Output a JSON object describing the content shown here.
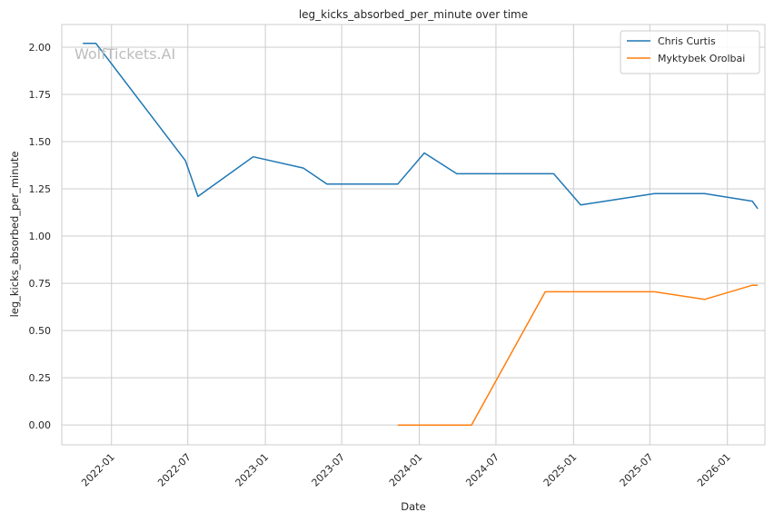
{
  "chart_data": {
    "type": "line",
    "title": "leg_kicks_absorbed_per_minute over time",
    "xlabel": "Date",
    "ylabel": "leg_kicks_absorbed_per_minute",
    "watermark": "WolfTickets.AI",
    "x_ticks": [
      "2022-01",
      "2022-07",
      "2023-01",
      "2023-07",
      "2024-01",
      "2024-07",
      "2025-01",
      "2025-07",
      "2026-01"
    ],
    "y_ticks": [
      "0.00",
      "0.25",
      "0.50",
      "0.75",
      "1.00",
      "1.25",
      "1.50",
      "1.75",
      "2.00"
    ],
    "xlim": [
      "2021-09-05",
      "2026-03-31"
    ],
    "ylim": [
      -0.105,
      2.12
    ],
    "grid": true,
    "legend_position": "top-right",
    "series": [
      {
        "name": "Chris Curtis",
        "color": "#1f77b4",
        "points": [
          {
            "x": "2021-10-25",
            "y": 2.02
          },
          {
            "x": "2021-11-25",
            "y": 2.02
          },
          {
            "x": "2022-06-25",
            "y": 1.4
          },
          {
            "x": "2022-07-25",
            "y": 1.21
          },
          {
            "x": "2022-12-03",
            "y": 1.42
          },
          {
            "x": "2023-04-01",
            "y": 1.36
          },
          {
            "x": "2023-05-27",
            "y": 1.275
          },
          {
            "x": "2023-11-11",
            "y": 1.275
          },
          {
            "x": "2024-01-13",
            "y": 1.44
          },
          {
            "x": "2024-03-30",
            "y": 1.33
          },
          {
            "x": "2024-11-15",
            "y": 1.33
          },
          {
            "x": "2025-01-18",
            "y": 1.165
          },
          {
            "x": "2025-07-12",
            "y": 1.225
          },
          {
            "x": "2025-11-08",
            "y": 1.225
          },
          {
            "x": "2026-03-01",
            "y": 1.185
          },
          {
            "x": "2026-03-14",
            "y": 1.145
          }
        ]
      },
      {
        "name": "Myktybek Orolbai",
        "color": "#ff7f0e",
        "points": [
          {
            "x": "2023-11-11",
            "y": 0.0
          },
          {
            "x": "2024-05-04",
            "y": 0.0
          },
          {
            "x": "2024-10-26",
            "y": 0.705
          },
          {
            "x": "2025-07-12",
            "y": 0.705
          },
          {
            "x": "2025-11-08",
            "y": 0.665
          },
          {
            "x": "2026-03-01",
            "y": 0.74
          },
          {
            "x": "2026-03-14",
            "y": 0.74
          }
        ]
      }
    ]
  }
}
